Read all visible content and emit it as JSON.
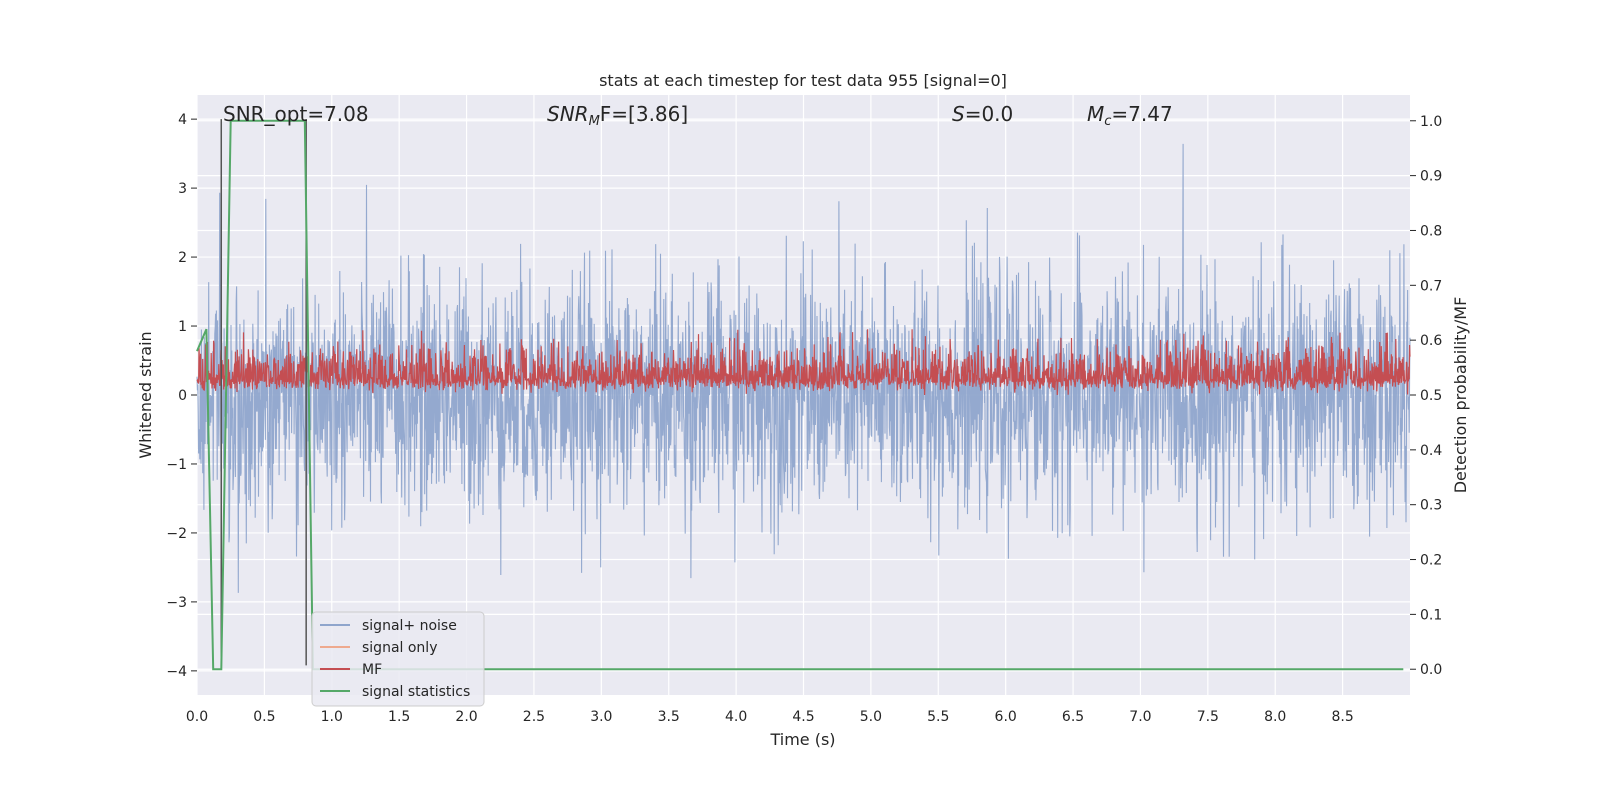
{
  "chart_data": {
    "type": "line",
    "title": "stats at each timestep for test data 955 [signal=0]",
    "xlabel": "Time (s)",
    "ylabel": "Whitened strain",
    "ylabel_right": "Detection probability/MF",
    "xlim": [
      0,
      9.0
    ],
    "ylim": [
      -4.35,
      4.35
    ],
    "ylim_right": [
      -0.047,
      1.047
    ],
    "x_ticks": [
      "0.0",
      "0.5",
      "1.0",
      "1.5",
      "2.0",
      "2.5",
      "3.0",
      "3.5",
      "4.0",
      "4.5",
      "5.0",
      "5.5",
      "6.0",
      "6.5",
      "7.0",
      "7.5",
      "8.0",
      "8.5"
    ],
    "y_ticks": [
      "−4",
      "−3",
      "−2",
      "−1",
      "0",
      "1",
      "2",
      "3",
      "4"
    ],
    "y_ticks_right": [
      "0.0",
      "0.1",
      "0.2",
      "0.3",
      "0.4",
      "0.5",
      "0.6",
      "0.7",
      "0.8",
      "0.9",
      "1.0"
    ],
    "annotations": {
      "snr_opt": "SNR_opt=7.08",
      "snr_mf_var": "SNR",
      "snr_mf_sub": "M",
      "snr_mf_rest": "F=[3.86]",
      "s_var": "S",
      "s_rest": "=0.0",
      "mc_var": "M",
      "mc_sub": "c",
      "mc_rest": "=7.47"
    },
    "legend_position": "lower-left",
    "grid": true,
    "series": [
      {
        "name": "signal+ noise",
        "color": "#8fa5cc",
        "noise_std": 0.85,
        "range": [
          -3.95,
          4.0
        ]
      },
      {
        "name": "signal only",
        "color": "#eea98e",
        "values": []
      },
      {
        "name": "MF",
        "color": "#c44e52",
        "axis": "right",
        "noise_mean": 0.53,
        "noise_std": 0.025,
        "range": [
          0.5,
          0.62
        ]
      },
      {
        "name": "signal statistics",
        "color": "#55a868",
        "axis": "right",
        "x": [
          0.0,
          0.07,
          0.12,
          0.18,
          0.25,
          0.8,
          0.86,
          8.95
        ],
        "y": [
          0.58,
          0.62,
          0.0,
          0.0,
          1.0,
          1.0,
          0.0,
          0.0
        ]
      }
    ],
    "vlines": [
      0.18,
      0.81
    ],
    "vline_color": "#555555"
  }
}
